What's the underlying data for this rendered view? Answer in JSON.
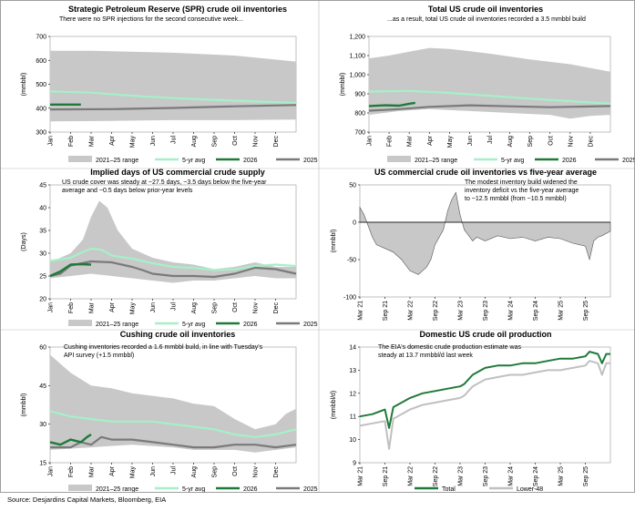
{
  "source": "Source: Desjardins Capital Markets, Bloomberg, EIA",
  "colors": {
    "range": "#c8c8c8",
    "avg": "#a6f0c8",
    "c2026": "#1f7a3a",
    "c2025": "#7a7a7a",
    "axis": "#000000"
  },
  "chart_data": [
    {
      "type": "area",
      "title": "Strategic Petroleum Reserve (SPR) crude oil inventories",
      "annotation": [
        "There were no SPR injections for the second consecutive week..."
      ],
      "ylabel": "(mmbbl)",
      "ylim": [
        300,
        700
      ],
      "yticks": [
        300,
        400,
        500,
        600,
        700
      ],
      "ytick_labels": [
        "300",
        "400",
        "500",
        "600",
        "700"
      ],
      "xticks": [
        "Jan",
        "Feb",
        "Mar",
        "Apr",
        "May",
        "Jun",
        "Jul",
        "Aug",
        "Sep",
        "Oct",
        "Nov",
        "Dec"
      ],
      "x_month_range": [
        0,
        12
      ],
      "legend": [
        "2021–25 range",
        "5-yr avg",
        "2026",
        "2025"
      ],
      "range_upper": {
        "x": [
          0,
          2,
          3,
          6,
          9,
          12
        ],
        "y": [
          640,
          640,
          638,
          632,
          620,
          595
        ]
      },
      "range_lower": {
        "x": [
          0,
          3,
          6,
          9,
          12
        ],
        "y": [
          345,
          347,
          350,
          350,
          352
        ]
      },
      "avg": {
        "x": [
          0,
          2,
          4,
          6,
          8,
          10,
          12
        ],
        "y": [
          470,
          465,
          452,
          442,
          435,
          428,
          422
        ]
      },
      "y2026": {
        "x": [
          0,
          1.5
        ],
        "y": [
          415,
          415
        ]
      },
      "y2025": {
        "x": [
          0,
          3,
          6,
          9,
          12
        ],
        "y": [
          395,
          396,
          401,
          408,
          413
        ]
      }
    },
    {
      "type": "area",
      "title": "Total US crude oil inventories",
      "annotation": [
        "...as a result, total US crude oil inventories recorded a 3.5 mmbbl build"
      ],
      "ylabel": "(mmbbl)",
      "ylim": [
        700,
        1200
      ],
      "yticks": [
        700,
        800,
        900,
        1000,
        1100,
        1200
      ],
      "ytick_labels": [
        "700",
        "800",
        "900",
        "1,000",
        "1,100",
        "1,200"
      ],
      "xticks": [
        "Jan",
        "Feb",
        "Mar",
        "Apr",
        "May",
        "Jun",
        "Jul",
        "Aug",
        "Sep",
        "Oct",
        "Nov",
        "Dec"
      ],
      "x_month_range": [
        0,
        12
      ],
      "legend": [
        "2021–25 range",
        "5-yr avg",
        "2026",
        "2025"
      ],
      "range_upper": {
        "x": [
          0,
          1,
          2,
          3,
          4,
          6,
          8,
          10,
          12
        ],
        "y": [
          1085,
          1100,
          1120,
          1140,
          1135,
          1110,
          1080,
          1055,
          1015
        ]
      },
      "range_lower": {
        "x": [
          0,
          1.5,
          3,
          5,
          7,
          9,
          10,
          11,
          12
        ],
        "y": [
          790,
          810,
          820,
          810,
          800,
          790,
          770,
          785,
          790
        ]
      },
      "avg": {
        "x": [
          0,
          2,
          4,
          6,
          8,
          10,
          12
        ],
        "y": [
          912,
          915,
          905,
          890,
          875,
          862,
          848
        ]
      },
      "y2026": {
        "x": [
          0,
          0.8,
          1.5,
          2,
          2.3
        ],
        "y": [
          836,
          840,
          838,
          848,
          853
        ]
      },
      "y2025": {
        "x": [
          0,
          1.5,
          3,
          5,
          7,
          9,
          12
        ],
        "y": [
          812,
          820,
          832,
          840,
          835,
          830,
          836
        ]
      }
    },
    {
      "type": "area",
      "title": "Implied days of US commercial crude supply",
      "annotation": [
        "US crude cover was steady at ~27.5 days, ~3.5 days below the five-year",
        "average and ~0.5 days below prior-year levels"
      ],
      "ylabel": "(Days)",
      "ylim": [
        20,
        45
      ],
      "yticks": [
        20,
        25,
        30,
        35,
        40,
        45
      ],
      "ytick_labels": [
        "20",
        "25",
        "30",
        "35",
        "40",
        "45"
      ],
      "xticks": [
        "Jan",
        "Feb",
        "Mar",
        "Apr",
        "May",
        "Jun",
        "Jul",
        "Aug",
        "Sep",
        "Oct",
        "Nov",
        "Dec"
      ],
      "x_month_range": [
        0,
        12
      ],
      "legend": [
        "2021–25 range",
        "5-yr avg",
        "2026",
        "2025"
      ],
      "range_upper": {
        "x": [
          0,
          1,
          1.6,
          2,
          2.4,
          2.8,
          3.3,
          4,
          5,
          6,
          7,
          8,
          9,
          10,
          11,
          12
        ],
        "y": [
          28,
          30,
          33,
          38,
          41.5,
          40,
          35,
          31,
          29,
          28,
          27.5,
          26.5,
          27,
          28,
          27,
          27
        ]
      },
      "range_lower": {
        "x": [
          0,
          1,
          2,
          3,
          4,
          5,
          6,
          7,
          8,
          9,
          10,
          11,
          12
        ],
        "y": [
          24.5,
          25,
          25.5,
          25,
          24.5,
          24,
          23.5,
          24,
          24,
          24.5,
          25,
          24.5,
          24.5
        ]
      },
      "avg": {
        "x": [
          0,
          1,
          1.6,
          2,
          2.5,
          3,
          4,
          5,
          6,
          7,
          8,
          9,
          10,
          11,
          12
        ],
        "y": [
          28.3,
          29,
          30.3,
          31,
          30.8,
          29.5,
          28.8,
          27.8,
          27,
          26.8,
          26.3,
          26.5,
          27.2,
          27.5,
          27.2
        ]
      },
      "y2026": {
        "x": [
          0,
          0.5,
          1,
          1.5,
          2
        ],
        "y": [
          25,
          26,
          27.5,
          27.6,
          27.5
        ]
      },
      "y2025": {
        "x": [
          0,
          0.5,
          1,
          2,
          3,
          4,
          4.5,
          5,
          6,
          7,
          8,
          9,
          10,
          11,
          12
        ],
        "y": [
          25,
          25.5,
          27.3,
          28.2,
          28,
          27,
          26.3,
          25.5,
          25,
          25,
          24.8,
          25.5,
          26.8,
          26.5,
          25.5
        ]
      }
    },
    {
      "type": "area",
      "title": "US commercial crude oil inventories vs five-year average",
      "annotation": [
        "The modest inventory build widened the",
        "inventory deficit vs the five-year average",
        "to ~12.5 mmbbl (from ~10.5 mmbbl)"
      ],
      "ylabel": "(mmbbl)",
      "ylim": [
        -100,
        50
      ],
      "yticks": [
        -100,
        -50,
        0,
        50
      ],
      "ytick_labels": [
        "-100",
        "-50",
        "0",
        "50"
      ],
      "xticks": [
        "Mar 21",
        "Sep 21",
        "Mar 22",
        "Sep 22",
        "Mar 23",
        "Sep 23",
        "Mar 24",
        "Sep 24",
        "Mar 25",
        "Sep 25"
      ],
      "x_month_range": [
        0,
        60
      ],
      "series": {
        "x": [
          0,
          1,
          2,
          3,
          4,
          6,
          8,
          10,
          12,
          14,
          16,
          17,
          18,
          20,
          21,
          22,
          23,
          24,
          25,
          27,
          28,
          30,
          33,
          36,
          39,
          42,
          45,
          48,
          51,
          54,
          55,
          56,
          57,
          58,
          60
        ],
        "y": [
          20,
          10,
          -5,
          -20,
          -30,
          -35,
          -40,
          -50,
          -65,
          -70,
          -60,
          -50,
          -30,
          -10,
          15,
          30,
          40,
          10,
          -10,
          -25,
          -20,
          -25,
          -18,
          -22,
          -20,
          -25,
          -20,
          -22,
          -28,
          -32,
          -50,
          -25,
          -20,
          -18,
          -12
        ]
      }
    },
    {
      "type": "area",
      "title": "Cushing crude oil inventories",
      "annotation": [
        "Cushing inventories recorded a 1.6 mmbbl build, in line with Tuesday's",
        "API survey (+1.5 mmbbl)"
      ],
      "ylabel": "(mmbbl)",
      "ylim": [
        15,
        60
      ],
      "yticks": [
        15,
        30,
        45,
        60
      ],
      "ytick_labels": [
        "15",
        "30",
        "45",
        "60"
      ],
      "xticks": [
        "Jan",
        "Feb",
        "Mar",
        "Apr",
        "May",
        "Jun",
        "Jul",
        "Aug",
        "Sep",
        "Oct",
        "Nov",
        "Dec"
      ],
      "x_month_range": [
        0,
        12
      ],
      "legend": [
        "2021–25 range",
        "5-yr avg",
        "2026",
        "2025"
      ],
      "range_upper": {
        "x": [
          0,
          1,
          2,
          3,
          4,
          5,
          6,
          7,
          8,
          9,
          10,
          11,
          11.5,
          12
        ],
        "y": [
          57,
          50,
          45,
          44,
          42,
          41,
          40,
          38,
          37,
          32,
          28,
          30,
          34,
          36
        ]
      },
      "range_lower": {
        "x": [
          0,
          2,
          4,
          6,
          7,
          8,
          9,
          10,
          11,
          12
        ],
        "y": [
          20,
          21,
          22,
          21,
          20,
          20,
          20,
          19,
          20,
          21
        ]
      },
      "avg": {
        "x": [
          0,
          1,
          2,
          3,
          4,
          5,
          6,
          7,
          8,
          9,
          10,
          11,
          12
        ],
        "y": [
          35,
          33,
          32,
          31,
          31,
          31,
          30,
          29,
          28,
          26,
          25,
          26,
          28
        ]
      },
      "y2026": {
        "x": [
          0,
          0.5,
          1,
          1.5,
          1.8,
          2
        ],
        "y": [
          23,
          22,
          24,
          23,
          25,
          26
        ]
      },
      "y2025": {
        "x": [
          0,
          1,
          1.5,
          2,
          2.5,
          3,
          4,
          5,
          6,
          7,
          8,
          9,
          10,
          11,
          12
        ],
        "y": [
          21,
          21,
          23,
          22,
          25,
          24,
          24,
          23,
          22,
          21,
          21,
          22,
          22,
          21,
          22
        ]
      }
    },
    {
      "type": "line",
      "title": "Domestic US crude oil production",
      "annotation": [
        "The EIA's domestic crude production estimate was",
        "steady at 13.7 mmbbl/d last week"
      ],
      "ylabel": "(mmbbl/d)",
      "ylim": [
        9,
        14
      ],
      "yticks": [
        9,
        10,
        11,
        12,
        13,
        14
      ],
      "ytick_labels": [
        "9",
        "10",
        "11",
        "12",
        "13",
        "14"
      ],
      "xticks": [
        "Mar 21",
        "Sep 21",
        "Mar 22",
        "Sep 22",
        "Mar 23",
        "Sep 23",
        "Mar 24",
        "Sep 24",
        "Mar 25",
        "Sep 25"
      ],
      "x_month_range": [
        0,
        60
      ],
      "series": [
        {
          "name": "Total",
          "x": [
            0,
            3,
            6,
            7,
            8,
            10,
            12,
            15,
            18,
            21,
            24,
            25,
            27,
            30,
            33,
            36,
            39,
            42,
            45,
            48,
            51,
            54,
            55,
            57,
            58,
            59,
            60
          ],
          "y": [
            11,
            11.1,
            11.3,
            10.5,
            11.4,
            11.6,
            11.8,
            12,
            12.1,
            12.2,
            12.3,
            12.4,
            12.8,
            13.1,
            13.2,
            13.2,
            13.3,
            13.3,
            13.4,
            13.5,
            13.5,
            13.6,
            13.8,
            13.7,
            13.3,
            13.7,
            13.7
          ]
        },
        {
          "name": "Lower-48",
          "x": [
            0,
            3,
            6,
            7,
            8,
            10,
            12,
            15,
            18,
            21,
            24,
            25,
            27,
            30,
            33,
            36,
            39,
            42,
            45,
            48,
            51,
            54,
            55,
            57,
            58,
            59,
            60
          ],
          "y": [
            10.6,
            10.7,
            10.8,
            9.6,
            10.9,
            11.1,
            11.3,
            11.5,
            11.6,
            11.7,
            11.8,
            11.9,
            12.3,
            12.6,
            12.7,
            12.8,
            12.8,
            12.9,
            13,
            13,
            13.1,
            13.2,
            13.4,
            13.3,
            12.8,
            13.3,
            13.3
          ]
        }
      ],
      "legend": [
        "Total",
        "Lower-48"
      ]
    }
  ]
}
